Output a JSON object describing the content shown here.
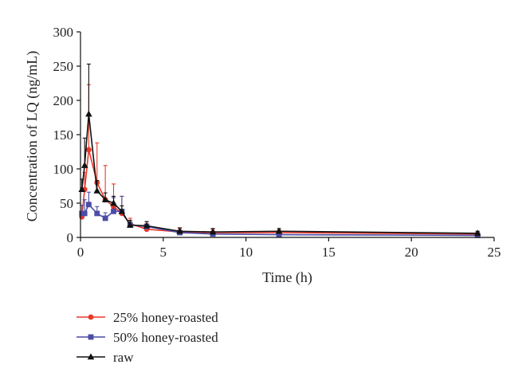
{
  "chart_data": {
    "type": "line",
    "title": "",
    "xlabel": "Time (h)",
    "ylabel": "Concentration of LQ (ng/mL)",
    "xlim": [
      0,
      25
    ],
    "ylim": [
      0,
      300
    ],
    "xticks": [
      0,
      5,
      10,
      15,
      20,
      25
    ],
    "yticks": [
      0,
      50,
      100,
      150,
      200,
      250,
      300
    ],
    "grid": false,
    "legend_position": "bottom-left",
    "series": [
      {
        "name": "25% honey-roasted",
        "color": "#e8392a",
        "marker": "circle",
        "x": [
          0.083,
          0.25,
          0.5,
          1,
          1.5,
          2,
          2.5,
          3,
          4,
          6,
          8,
          12,
          24
        ],
        "y": [
          30,
          70,
          128,
          80,
          55,
          45,
          35,
          20,
          12,
          8,
          7,
          7,
          5
        ],
        "err": [
          8,
          25,
          95,
          58,
          50,
          33,
          25,
          8,
          8,
          5,
          5,
          4,
          3
        ]
      },
      {
        "name": "50% honey-roasted",
        "color": "#4a4ca6",
        "marker": "square",
        "x": [
          0.083,
          0.25,
          0.5,
          1,
          1.5,
          2,
          2.5,
          3,
          4,
          6,
          8,
          12,
          24
        ],
        "y": [
          35,
          35,
          48,
          35,
          28,
          38,
          38,
          18,
          16,
          7,
          5,
          4,
          3
        ],
        "err": [
          12,
          20,
          18,
          10,
          8,
          20,
          22,
          5,
          7,
          3,
          3,
          2,
          2
        ]
      },
      {
        "name": "raw",
        "color": "#111111",
        "marker": "triangle",
        "x": [
          0.083,
          0.25,
          0.5,
          1,
          1.5,
          2,
          2.5,
          3,
          4,
          6,
          8,
          12,
          24
        ],
        "y": [
          70,
          105,
          180,
          68,
          55,
          50,
          38,
          18,
          17,
          9,
          8,
          9,
          6
        ],
        "err": [
          15,
          40,
          73,
          15,
          10,
          10,
          8,
          7,
          6,
          5,
          5,
          4,
          3
        ]
      }
    ]
  }
}
